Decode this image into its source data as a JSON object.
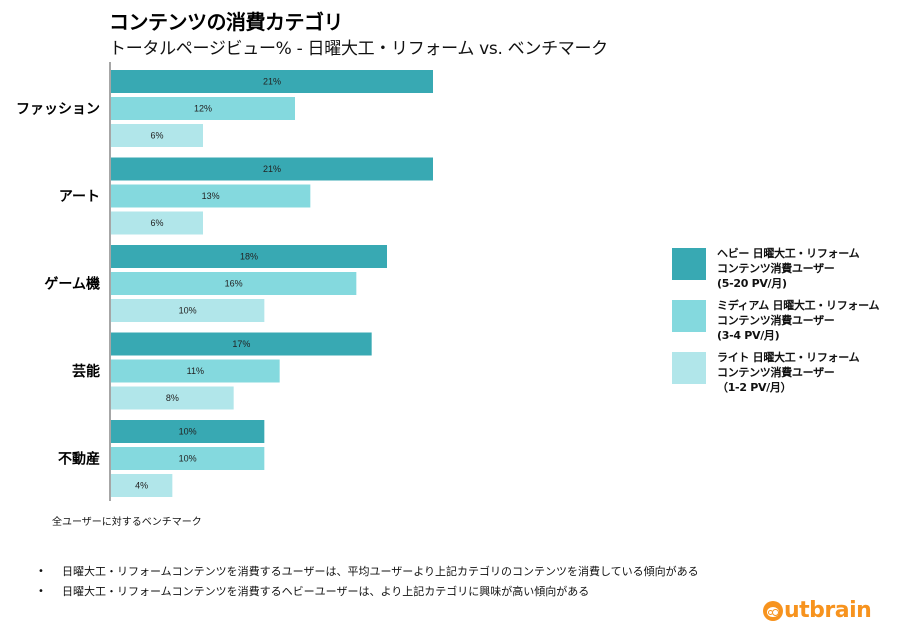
{
  "header": {
    "title": "コンテンツの消費カテゴリ",
    "subtitle": "トータルページビュー% - 日曜大工・リフォーム vs. ベンチマーク"
  },
  "chart_data": {
    "type": "bar",
    "orientation": "horizontal",
    "title": "コンテンツの消費カテゴリ",
    "subtitle": "トータルページビュー% - 日曜大工・リフォーム vs. ベンチマーク",
    "xlabel": "",
    "ylabel": "",
    "unit": "%",
    "grid": false,
    "legend_position": "right",
    "categories": [
      "ファッション",
      "アート",
      "ゲーム機",
      "芸能",
      "不動産"
    ],
    "series": [
      {
        "name": "ヘビー 日曜大工・リフォーム\nコンテンツ消費ユーザー\n(5-20 PV/月)",
        "color": "#38A9B3",
        "values": [
          21,
          21,
          18,
          17,
          10
        ]
      },
      {
        "name": "ミディアム 日曜大工・リフォーム\nコンテンツ消費ユーザー\n(3-4 PV/月)",
        "color": "#84D9DE",
        "values": [
          12,
          13,
          16,
          11,
          10
        ]
      },
      {
        "name": "ライト 日曜大工・リフォーム\nコンテンツ消費ユーザー\n（1-2 PV/月）",
        "color": "#B1E6EA",
        "values": [
          6,
          6,
          10,
          8,
          4
        ]
      }
    ],
    "xlim": [
      0,
      21
    ]
  },
  "benchmark_note": "全ユーザーに対するベンチマーク",
  "bullets": [
    "日曜大工・リフォームコンテンツを消費するユーザーは、平均ユーザーより上記カテゴリのコンテンツを消費している傾向がある",
    "日曜大工・リフォームコンテンツを消費するヘビーユーザーは、より上記カテゴリに興味が高い傾向がある"
  ],
  "bullet_char": "•",
  "logo": {
    "text": "utbrain",
    "brand": "outbrain",
    "color": "#F7931E"
  }
}
